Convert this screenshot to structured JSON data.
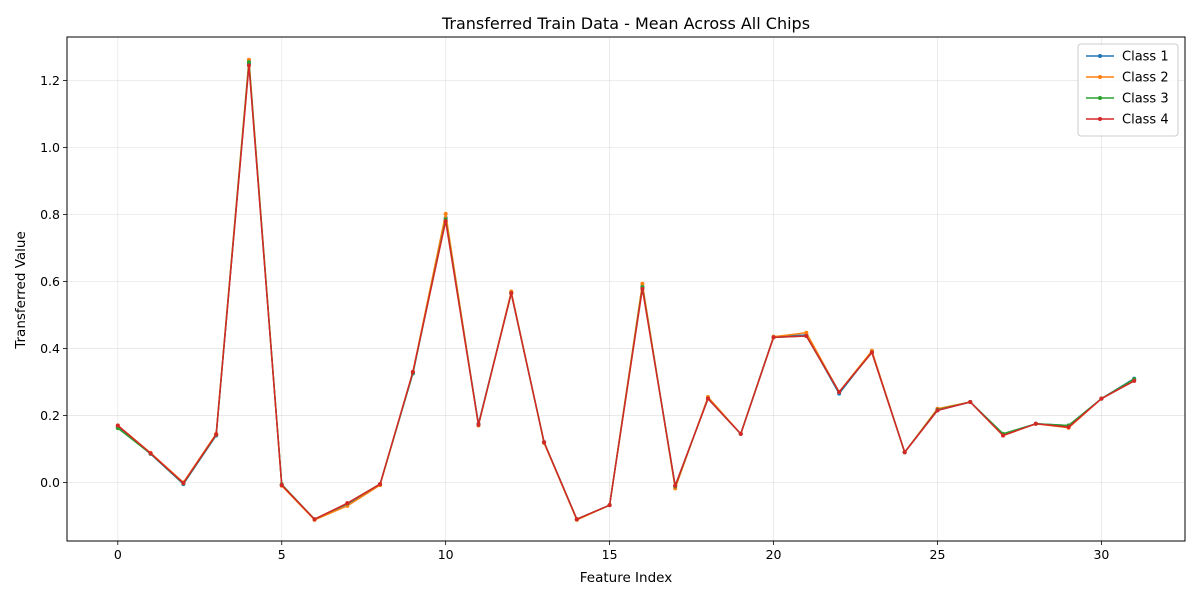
{
  "chart_data": {
    "type": "line",
    "title": "Transferred Train Data - Mean Across All Chips",
    "xlabel": "Feature Index",
    "ylabel": "Transferred Value",
    "xlim": [
      -1.55,
      32.55
    ],
    "ylim": [
      -0.175,
      1.33
    ],
    "xticks": [
      0,
      5,
      10,
      15,
      20,
      25,
      30
    ],
    "yticks": [
      0.0,
      0.2,
      0.4,
      0.6,
      0.8,
      1.0,
      1.2
    ],
    "grid": true,
    "legend_position": "top-right",
    "x": [
      0,
      1,
      2,
      3,
      4,
      5,
      6,
      7,
      8,
      9,
      10,
      11,
      12,
      13,
      14,
      15,
      16,
      17,
      18,
      19,
      20,
      21,
      22,
      23,
      24,
      25,
      26,
      27,
      28,
      29,
      30,
      31
    ],
    "series": [
      {
        "name": "Class 1",
        "color": "#1f77b4",
        "values": [
          0.165,
          0.085,
          -0.005,
          0.14,
          1.25,
          -0.008,
          -0.11,
          -0.065,
          -0.005,
          0.325,
          0.79,
          0.175,
          0.565,
          0.12,
          -0.11,
          -0.068,
          0.585,
          -0.01,
          0.25,
          0.145,
          0.435,
          0.44,
          0.265,
          0.39,
          0.09,
          0.215,
          0.24,
          0.145,
          0.175,
          0.17,
          0.25,
          0.31
        ]
      },
      {
        "name": "Class 2",
        "color": "#ff7f0e",
        "values": [
          0.17,
          0.088,
          0.0,
          0.145,
          1.262,
          -0.01,
          -0.112,
          -0.07,
          -0.008,
          0.33,
          0.802,
          0.17,
          0.57,
          0.118,
          -0.112,
          -0.068,
          0.593,
          -0.018,
          0.255,
          0.145,
          0.435,
          0.447,
          0.27,
          0.393,
          0.09,
          0.22,
          0.24,
          0.14,
          0.175,
          0.163,
          0.25,
          0.305
        ]
      },
      {
        "name": "Class 3",
        "color": "#2ca02c",
        "values": [
          0.162,
          0.086,
          -0.003,
          0.142,
          1.255,
          -0.006,
          -0.11,
          -0.063,
          -0.005,
          0.327,
          0.785,
          0.172,
          0.565,
          0.12,
          -0.11,
          -0.068,
          0.583,
          -0.012,
          0.25,
          0.145,
          0.433,
          0.437,
          0.27,
          0.388,
          0.09,
          0.217,
          0.24,
          0.145,
          0.175,
          0.17,
          0.25,
          0.308
        ]
      },
      {
        "name": "Class 4",
        "color": "#d62728",
        "values": [
          0.17,
          0.087,
          -0.002,
          0.143,
          1.245,
          -0.008,
          -0.11,
          -0.062,
          -0.005,
          0.33,
          0.78,
          0.172,
          0.565,
          0.12,
          -0.11,
          -0.068,
          0.578,
          -0.01,
          0.25,
          0.145,
          0.433,
          0.437,
          0.27,
          0.388,
          0.09,
          0.215,
          0.24,
          0.14,
          0.175,
          0.165,
          0.25,
          0.303
        ]
      }
    ]
  }
}
